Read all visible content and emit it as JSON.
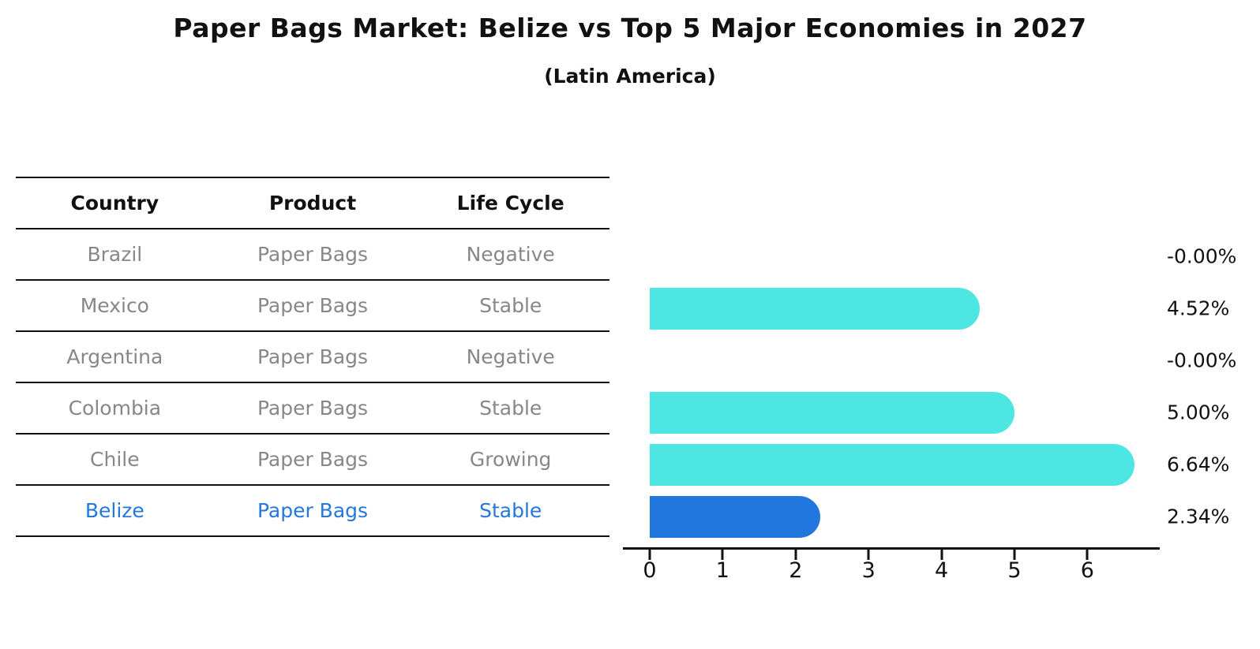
{
  "title": "Paper Bags Market: Belize vs Top 5 Major Economies in 2027",
  "subtitle": "(Latin America)",
  "table": {
    "headers": [
      "Country",
      "Product",
      "Life Cycle"
    ],
    "rows": [
      {
        "country": "Brazil",
        "product": "Paper Bags",
        "life_cycle": "Negative",
        "highlight": false
      },
      {
        "country": "Mexico",
        "product": "Paper Bags",
        "life_cycle": "Stable",
        "highlight": false
      },
      {
        "country": "Argentina",
        "product": "Paper Bags",
        "life_cycle": "Negative",
        "highlight": false
      },
      {
        "country": "Colombia",
        "product": "Paper Bags",
        "life_cycle": "Stable",
        "highlight": false
      },
      {
        "country": "Chile",
        "product": "Paper Bags",
        "life_cycle": "Growing",
        "highlight": false
      },
      {
        "country": "Belize",
        "product": "Paper Bags",
        "life_cycle": "Stable",
        "highlight": true
      }
    ]
  },
  "chart_data": {
    "type": "bar",
    "orientation": "horizontal",
    "title": "Paper Bags Market: Belize vs Top 5 Major Economies in 2027",
    "subtitle": "(Latin America)",
    "categories": [
      "Brazil",
      "Mexico",
      "Argentina",
      "Colombia",
      "Chile",
      "Belize"
    ],
    "values": [
      -0.0,
      4.52,
      -0.0,
      5.0,
      6.64,
      2.34
    ],
    "labels": [
      "-0.00%",
      "4.52%",
      "-0.00%",
      "5.00%",
      "6.64%",
      "2.34%"
    ],
    "xlabel": "",
    "ylabel": "",
    "xticks": [
      0,
      1,
      2,
      3,
      4,
      5,
      6
    ],
    "xlim": [
      -0.36,
      7.0
    ],
    "grid": false,
    "legend": false,
    "bar_color": "#4DE6E2",
    "highlight_color": "#2277DF",
    "highlight_text_color": "#2478DC",
    "highlight_index": 5
  }
}
